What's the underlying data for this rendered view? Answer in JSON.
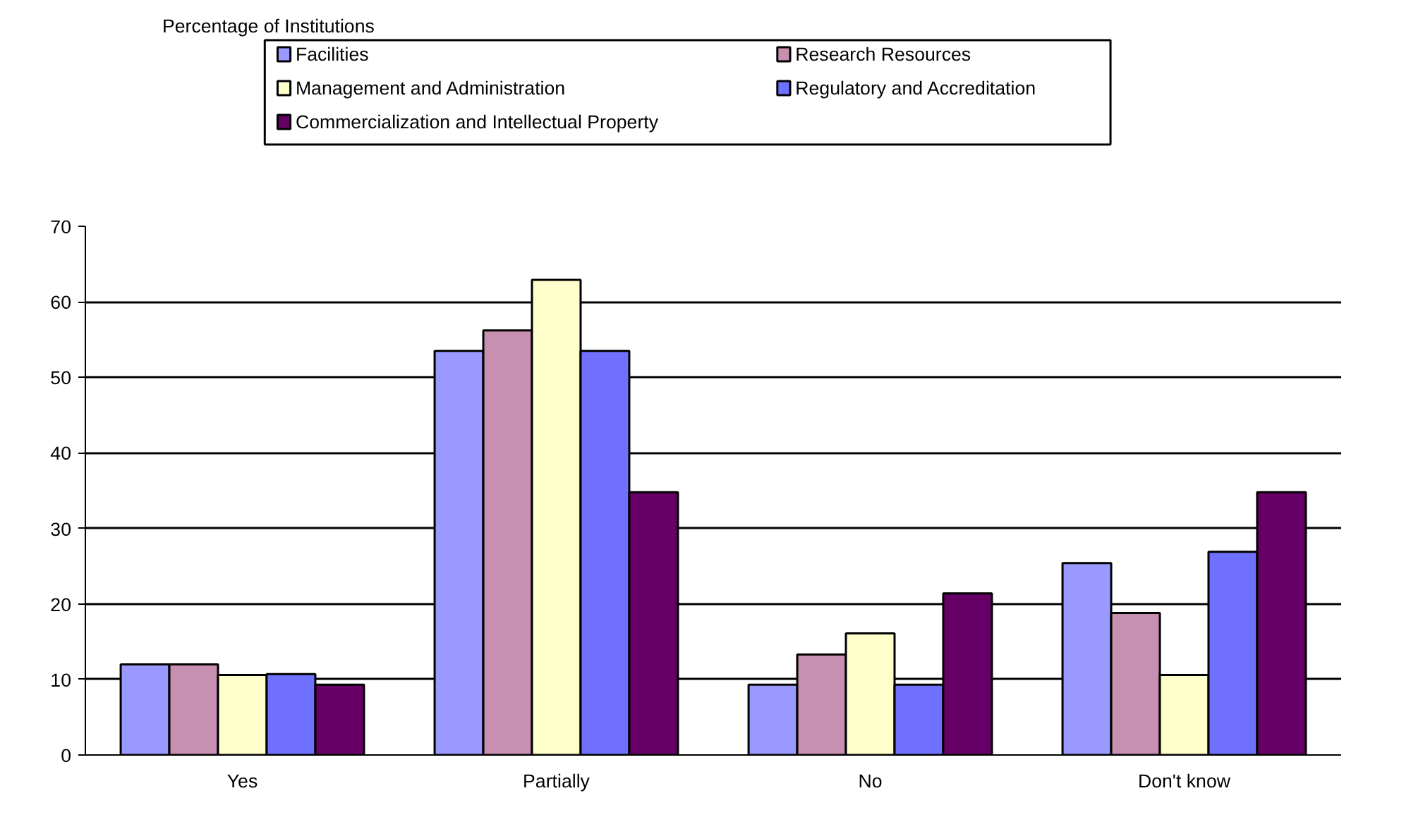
{
  "chart_data": {
    "type": "bar",
    "annotations": [
      "Percentage of Institutions"
    ],
    "categories": [
      "Yes",
      "Partially",
      "No",
      "Don't know"
    ],
    "series": [
      {
        "name": "Facilities",
        "color": "#9999ff",
        "values": [
          12.0,
          53.5,
          9.3,
          25.4
        ]
      },
      {
        "name": "Research Resources",
        "color": "#c890b0",
        "values": [
          12.0,
          56.2,
          13.3,
          18.8
        ]
      },
      {
        "name": "Management and Administration",
        "color": "#ffffcc",
        "values": [
          10.6,
          62.9,
          16.1,
          10.6
        ]
      },
      {
        "name": "Regulatory and Accreditation",
        "color": "#7070ff",
        "values": [
          10.7,
          53.5,
          9.3,
          26.9
        ]
      },
      {
        "name": "Commercialization and Intellectual Property",
        "color": "#660066",
        "values": [
          9.3,
          34.8,
          21.4,
          34.8
        ]
      }
    ],
    "ylim": [
      0,
      70
    ],
    "yticks": [
      0,
      10,
      20,
      30,
      40,
      50,
      60,
      70
    ],
    "grid": "y",
    "legend": "top"
  }
}
